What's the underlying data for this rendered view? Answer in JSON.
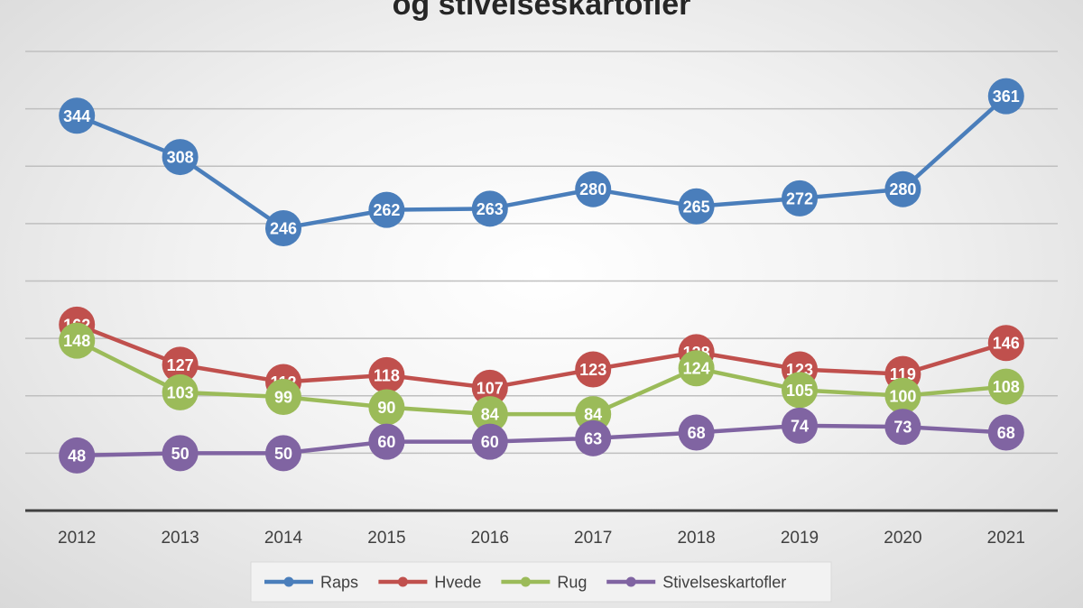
{
  "chart_data": {
    "type": "line",
    "title": "og stivelseskartofler",
    "categories": [
      "2012",
      "2013",
      "2014",
      "2015",
      "2016",
      "2017",
      "2018",
      "2019",
      "2020",
      "2021"
    ],
    "series": [
      {
        "name": "Raps",
        "color": "#4a7ebb",
        "values": [
          344,
          308,
          246,
          262,
          263,
          280,
          265,
          272,
          280,
          361
        ]
      },
      {
        "name": "Hvede",
        "color": "#c0504d",
        "values": [
          162,
          127,
          112,
          118,
          107,
          123,
          138,
          123,
          119,
          146
        ]
      },
      {
        "name": "Rug",
        "color": "#9bbb59",
        "values": [
          148,
          103,
          99,
          90,
          84,
          84,
          124,
          105,
          100,
          108
        ]
      },
      {
        "name": "Stivelseskartofler",
        "color": "#8064a2",
        "values": [
          48,
          50,
          50,
          60,
          60,
          63,
          68,
          74,
          73,
          68
        ]
      }
    ],
    "ylim": [
      0,
      400
    ],
    "grid": true,
    "legend": "bottom"
  }
}
